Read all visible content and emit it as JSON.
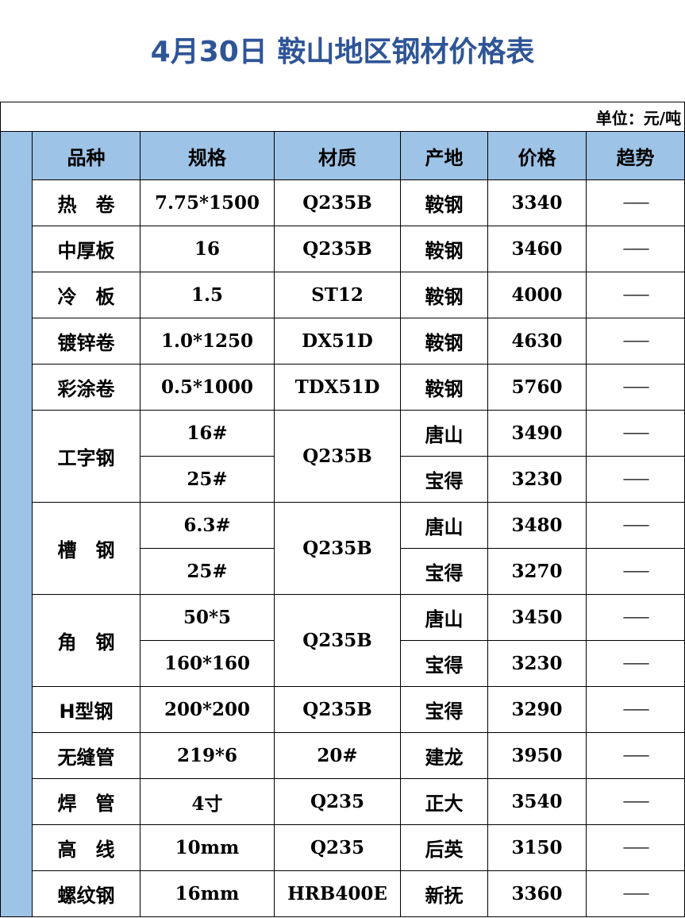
{
  "title": "4月30日 鞍山地区钢材价格表",
  "unit": "单位：元/吨",
  "colors": {
    "title": "#2f5597",
    "header_bg": "#9dc3e6",
    "strip": "#2f5597"
  },
  "headers": [
    "品种",
    "规格",
    "材质",
    "产地",
    "价格",
    "趋势"
  ],
  "groups": [
    {
      "product": "热　卷",
      "material": "Q235B",
      "items": [
        {
          "spec": "7.75*1500",
          "origin": "鞍钢",
          "price": "3340",
          "trend": "——"
        }
      ]
    },
    {
      "product": "中厚板",
      "material": "Q235B",
      "items": [
        {
          "spec": "16",
          "origin": "鞍钢",
          "price": "3460",
          "trend": "——"
        }
      ]
    },
    {
      "product": "冷　板",
      "material": "ST12",
      "items": [
        {
          "spec": "1.5",
          "origin": "鞍钢",
          "price": "4000",
          "trend": "——"
        }
      ]
    },
    {
      "product": "镀锌卷",
      "material": "DX51D",
      "items": [
        {
          "spec": "1.0*1250",
          "origin": "鞍钢",
          "price": "4630",
          "trend": "——"
        }
      ]
    },
    {
      "product": "彩涂卷",
      "material": "TDX51D",
      "items": [
        {
          "spec": "0.5*1000",
          "origin": "鞍钢",
          "price": "5760",
          "trend": "——"
        }
      ]
    },
    {
      "product": "工字钢",
      "material": "Q235B",
      "items": [
        {
          "spec": "16#",
          "origin": "唐山",
          "price": "3490",
          "trend": "——"
        },
        {
          "spec": "25#",
          "origin": "宝得",
          "price": "3230",
          "trend": "——"
        }
      ]
    },
    {
      "product": "槽　钢",
      "material": "Q235B",
      "items": [
        {
          "spec": "6.3#",
          "origin": "唐山",
          "price": "3480",
          "trend": "——"
        },
        {
          "spec": "25#",
          "origin": "宝得",
          "price": "3270",
          "trend": "——"
        }
      ]
    },
    {
      "product": "角　钢",
      "material": "Q235B",
      "items": [
        {
          "spec": "50*5",
          "origin": "唐山",
          "price": "3450",
          "trend": "——"
        },
        {
          "spec": "160*160",
          "origin": "宝得",
          "price": "3230",
          "trend": "——"
        }
      ]
    },
    {
      "product": "H型钢",
      "material": "Q235B",
      "items": [
        {
          "spec": "200*200",
          "origin": "宝得",
          "price": "3290",
          "trend": "——"
        }
      ]
    },
    {
      "product": "无缝管",
      "material": "20#",
      "items": [
        {
          "spec": "219*6",
          "origin": "建龙",
          "price": "3950",
          "trend": "——"
        }
      ]
    },
    {
      "product": "焊　管",
      "material": "Q235",
      "items": [
        {
          "spec": "4寸",
          "origin": "正大",
          "price": "3540",
          "trend": "——"
        }
      ]
    },
    {
      "product": "高　线",
      "material": "Q235",
      "items": [
        {
          "spec": "10mm",
          "origin": "后英",
          "price": "3150",
          "trend": "——"
        }
      ]
    },
    {
      "product": "螺纹钢",
      "material": "HRB400E",
      "items": [
        {
          "spec": "16mm",
          "origin": "新抚",
          "price": "3360",
          "trend": "——"
        }
      ]
    }
  ]
}
